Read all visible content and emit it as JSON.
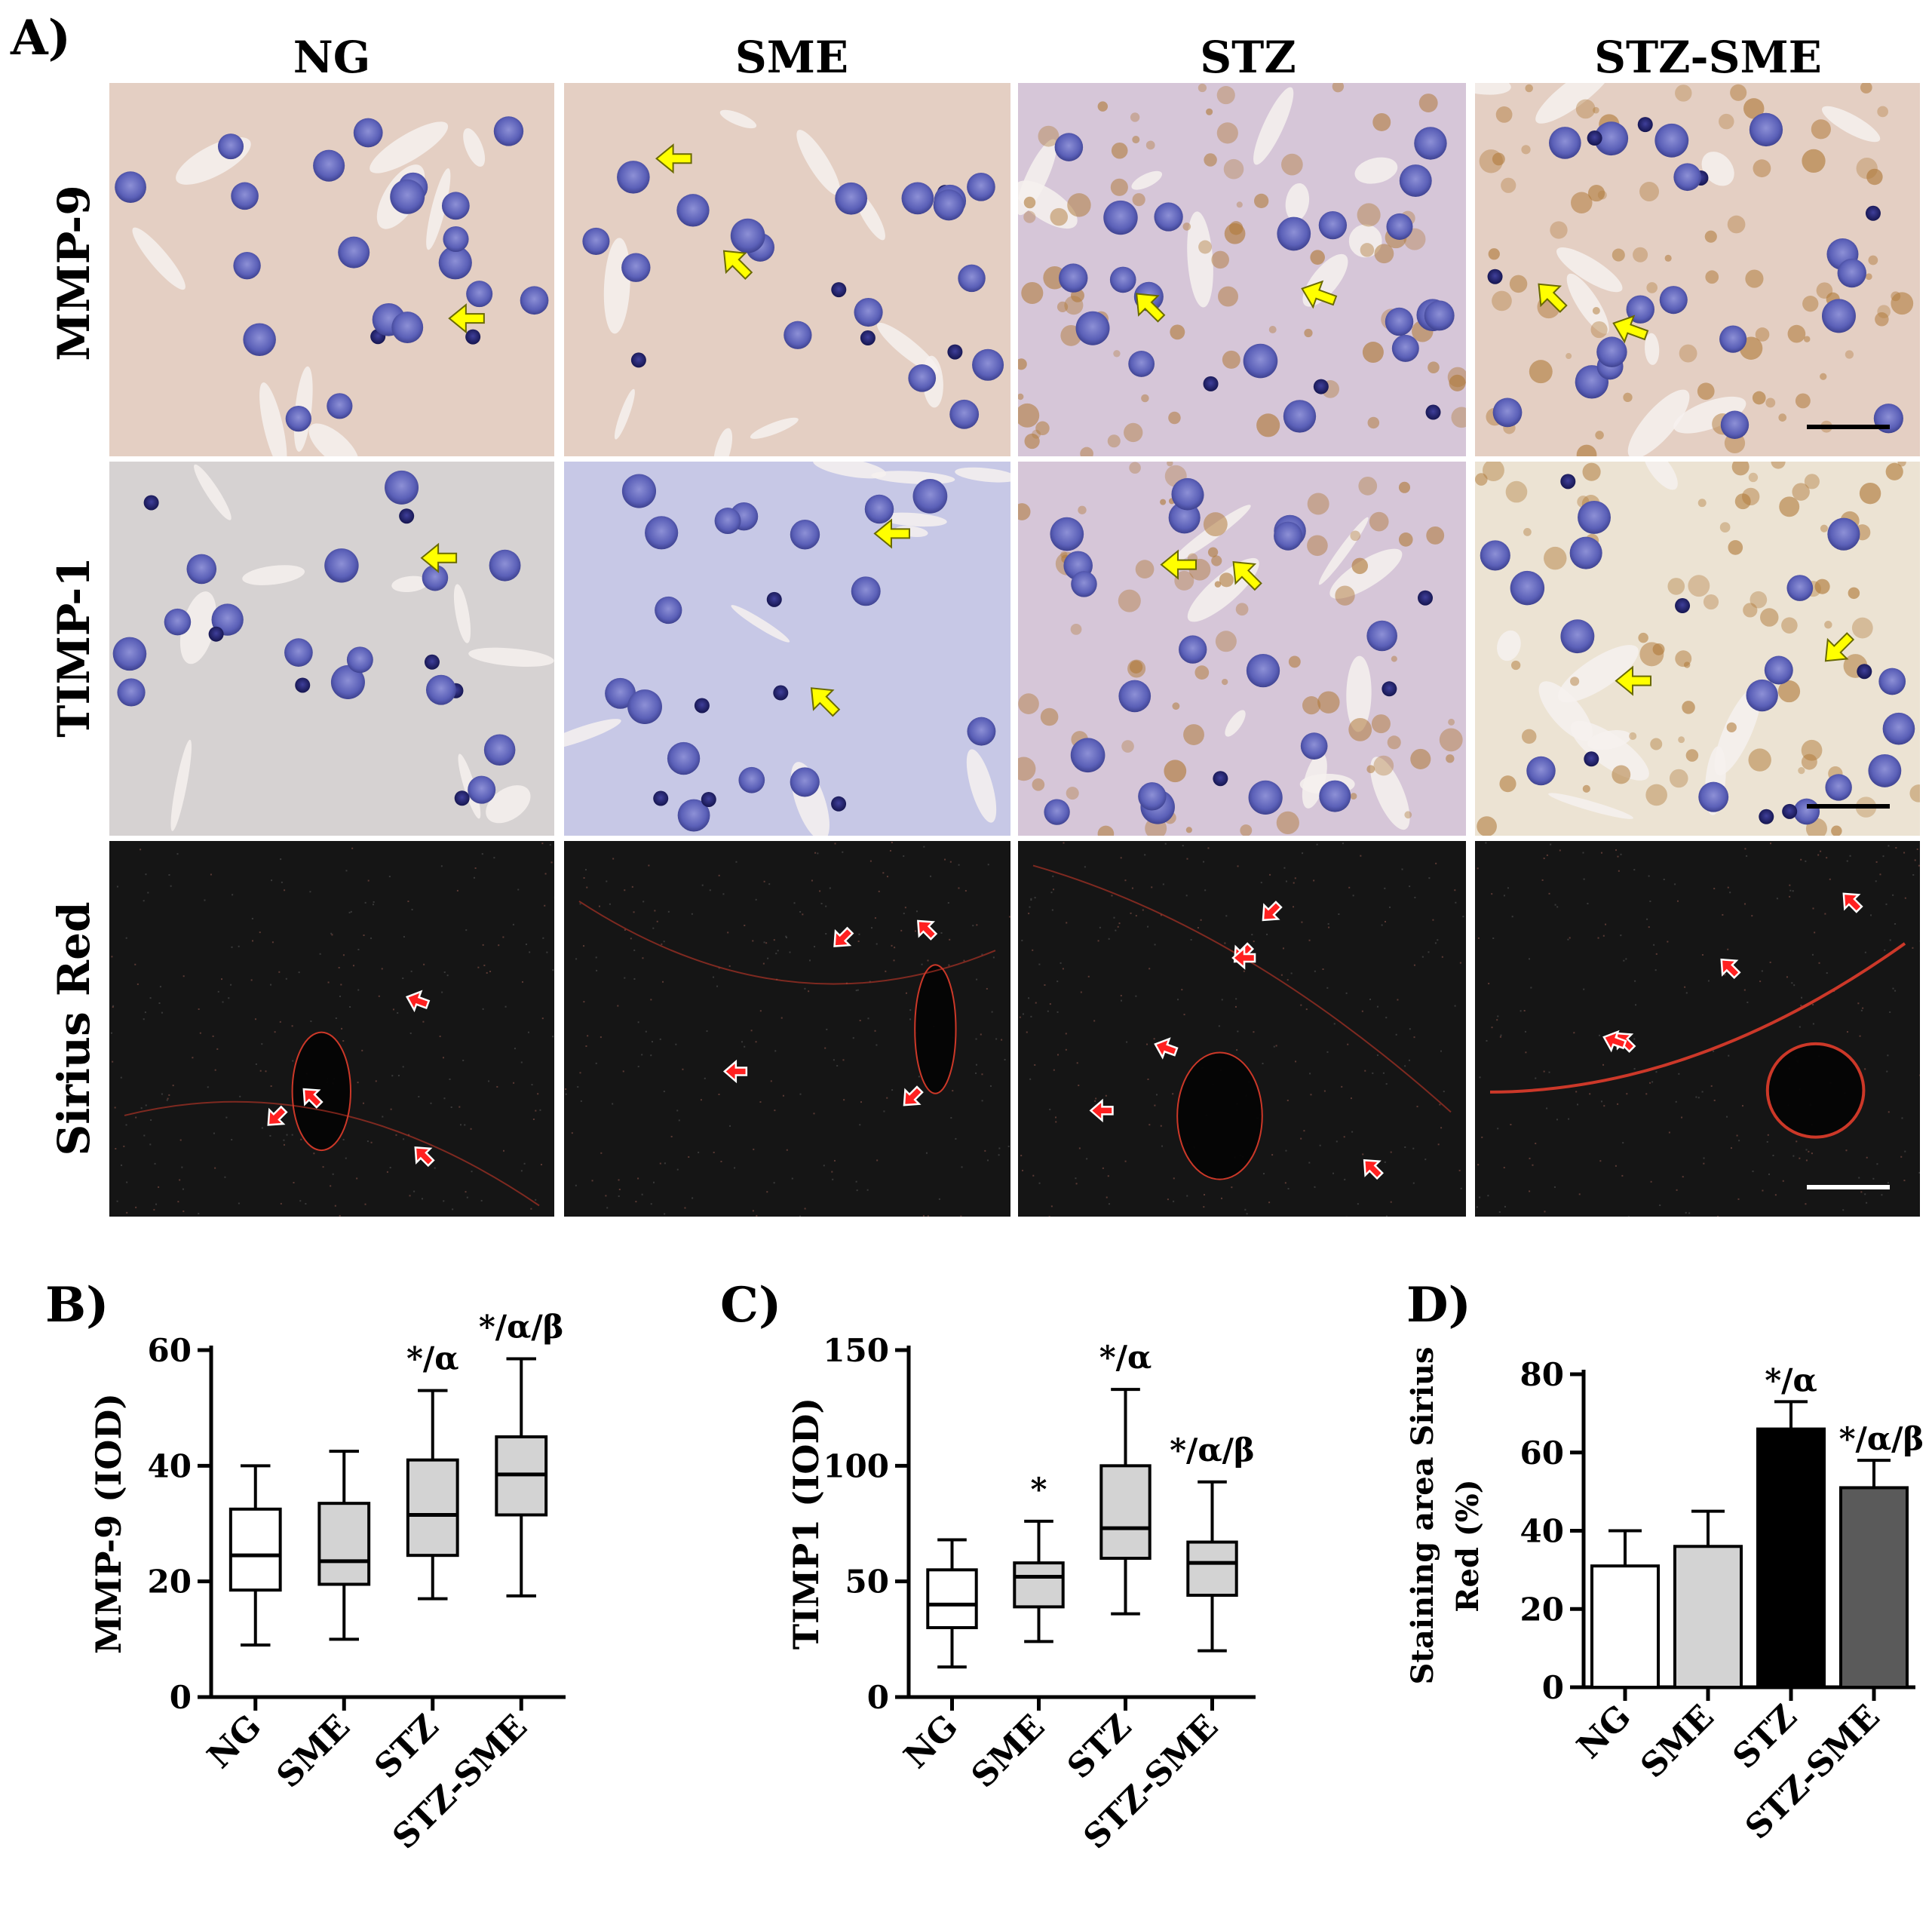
{
  "figure": {
    "panel_a": {
      "letter": "A)",
      "columns": [
        "NG",
        "SME",
        "STZ",
        "STZ-SME"
      ],
      "rows": [
        "MMP-9",
        "TIMP-1",
        "Sirius Red"
      ],
      "colors": {
        "ihc_background": "#e4cfc3",
        "ihc_stz_background": "#d6c6d8",
        "nucleus": "#5b60b8",
        "dab_brown": "#b07a3a",
        "sirius_background": "#151515",
        "collagen_red": "#d63a2a",
        "arrow_yellow": "#ffff00",
        "arrow_red": "#ff1a1a"
      }
    },
    "panel_b": {
      "letter": "B)"
    },
    "panel_c": {
      "letter": "C)"
    },
    "panel_d": {
      "letter": "D)"
    }
  },
  "chart_data": [
    {
      "type": "box",
      "panel": "B)",
      "ylabel": "MMP-9 (IOD)",
      "ylim": [
        0,
        60
      ],
      "yticks": [
        "0",
        "20",
        "40",
        "60"
      ],
      "categories": [
        "NG",
        "SME",
        "STZ",
        "STZ-SME"
      ],
      "boxes": [
        {
          "min": 9,
          "q1": 18.5,
          "median": 24.5,
          "q3": 32.5,
          "max": 40,
          "fill": "#ffffff"
        },
        {
          "min": 10,
          "q1": 19.5,
          "median": 23.5,
          "q3": 33.5,
          "max": 42.5,
          "fill": "#d3d3d3"
        },
        {
          "min": 17,
          "q1": 24.5,
          "median": 31.5,
          "q3": 41,
          "max": 53,
          "fill": "#d3d3d3"
        },
        {
          "min": 17.5,
          "q1": 31.5,
          "median": 38.5,
          "q3": 45,
          "max": 58.5,
          "fill": "#d3d3d3"
        }
      ],
      "annotations": [
        "",
        "",
        "*/α",
        "*/α/β"
      ]
    },
    {
      "type": "box",
      "panel": "C)",
      "ylabel": "TIMP1 (IOD)",
      "ylim": [
        0,
        150
      ],
      "yticks": [
        "0",
        "50",
        "100",
        "150"
      ],
      "categories": [
        "NG",
        "SME",
        "STZ",
        "STZ-SME"
      ],
      "boxes": [
        {
          "min": 13,
          "q1": 30,
          "median": 40,
          "q3": 55,
          "max": 68,
          "fill": "#ffffff"
        },
        {
          "min": 24,
          "q1": 39,
          "median": 52,
          "q3": 58,
          "max": 76,
          "fill": "#d3d3d3"
        },
        {
          "min": 36,
          "q1": 60,
          "median": 73,
          "q3": 100,
          "max": 133,
          "fill": "#d3d3d3"
        },
        {
          "min": 20,
          "q1": 44,
          "median": 58,
          "q3": 67,
          "max": 93,
          "fill": "#d3d3d3"
        }
      ],
      "annotations": [
        "",
        "*",
        "*/α",
        "*/α/β"
      ]
    },
    {
      "type": "bar",
      "panel": "D)",
      "ylabel": "Staining area Sirius Red (%)",
      "ylabel_lines": [
        "Staining area Sirius",
        "Red (%)"
      ],
      "ylim": [
        0,
        80
      ],
      "yticks": [
        "0",
        "20",
        "40",
        "60",
        "80"
      ],
      "categories": [
        "NG",
        "SME",
        "STZ",
        "STZ-SME"
      ],
      "values": [
        31,
        36,
        66,
        51
      ],
      "errors": [
        9,
        9,
        7,
        7
      ],
      "fills": [
        "#ffffff",
        "#d3d3d3",
        "#000000",
        "#5a5a5a"
      ],
      "annotations": [
        "",
        "",
        "*/α",
        "*/α/β"
      ]
    }
  ]
}
